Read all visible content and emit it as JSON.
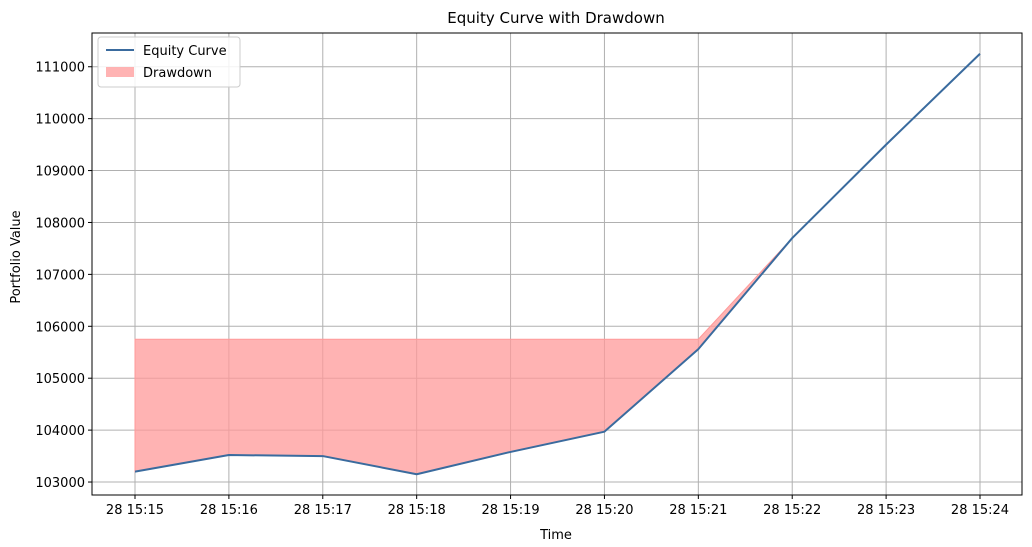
{
  "chart_data": {
    "type": "line",
    "title": "Equity Curve with Drawdown",
    "xlabel": "Time",
    "ylabel": "Portfolio Value",
    "x": [
      "28 15:15",
      "28 15:16",
      "28 15:17",
      "28 15:18",
      "28 15:19",
      "28 15:20",
      "28 15:21",
      "28 15:22",
      "28 15:23",
      "28 15:24"
    ],
    "x_tick_labels": [
      "28 15:15",
      "28 15:16",
      "28 15:17",
      "28 15:18",
      "28 15:19",
      "28 15:20",
      "28 15:21",
      "28 15:22",
      "28 15:23",
      "28 15:24"
    ],
    "series": [
      {
        "name": "Equity Curve",
        "type": "line",
        "color": "#3a6b9e",
        "values": [
          103200,
          103520,
          103500,
          103150,
          103580,
          103970,
          105560,
          107700,
          109500,
          111250
        ]
      },
      {
        "name": "Drawdown",
        "type": "area",
        "color": "#ff9999",
        "upper": [
          105750,
          105750,
          105750,
          105750,
          105750,
          105750,
          105750,
          107700,
          109500,
          111250
        ],
        "lower": [
          103200,
          103520,
          103500,
          103150,
          103580,
          103970,
          105560,
          107700,
          109500,
          111250
        ]
      }
    ],
    "y_ticks": [
      103000,
      104000,
      105000,
      106000,
      107000,
      108000,
      109000,
      110000,
      111000
    ],
    "y_tick_labels": [
      "103000",
      "104000",
      "105000",
      "106000",
      "107000",
      "108000",
      "109000",
      "110000",
      "111000"
    ],
    "ylim": [
      102750,
      111650
    ],
    "grid": true,
    "legend": "top-left"
  }
}
